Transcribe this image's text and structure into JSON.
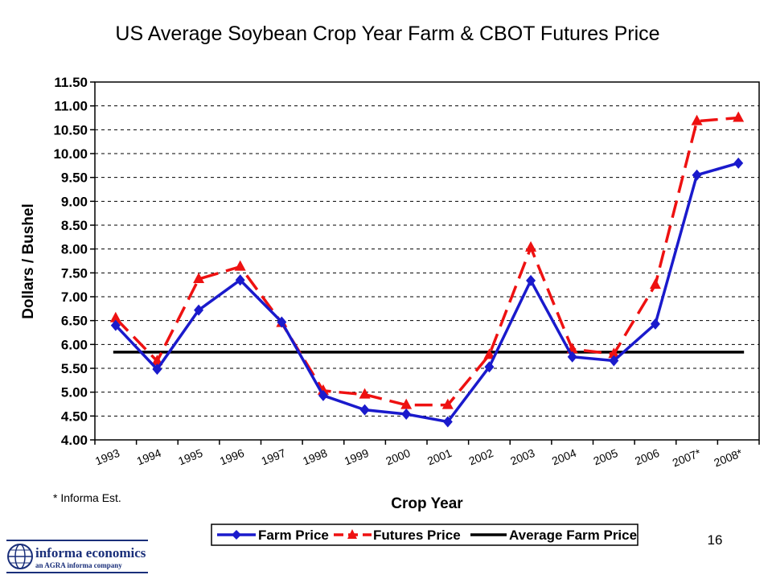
{
  "page_number": "16",
  "footnote": "* Informa Est.",
  "logo": {
    "name": "informa economics",
    "tagline": "an AGRA informa company"
  },
  "colors": {
    "farm": "#1a1acc",
    "futures": "#ee1111",
    "average": "#000000",
    "grid": "#000000"
  },
  "chart_data": {
    "type": "line",
    "title": "US Average Soybean Crop Year Farm & CBOT Futures Price",
    "xlabel": "Crop Year",
    "ylabel": "Dollars / Bushel",
    "ylim": [
      4.0,
      11.5
    ],
    "ytick_step": 0.5,
    "grid": "horizontal dashed",
    "legend_placement": "bottom",
    "categories": [
      "1993",
      "1994",
      "1995",
      "1996",
      "1997",
      "1998",
      "1999",
      "2000",
      "2001",
      "2002",
      "2003",
      "2004",
      "2005",
      "2006",
      "2007*",
      "2008*"
    ],
    "ytick_labels": [
      "4.00",
      "4.50",
      "5.00",
      "5.50",
      "6.00",
      "6.50",
      "7.00",
      "7.50",
      "8.00",
      "8.50",
      "9.00",
      "9.50",
      "10.00",
      "10.50",
      "11.00",
      "11.50"
    ],
    "series": [
      {
        "name": "Farm Price",
        "marker": "diamond",
        "line": "solid",
        "values": [
          6.4,
          5.48,
          6.72,
          7.35,
          6.47,
          4.93,
          4.63,
          4.54,
          4.38,
          5.53,
          7.34,
          5.74,
          5.66,
          6.43,
          9.55,
          9.8
        ]
      },
      {
        "name": "Futures Price",
        "marker": "triangle",
        "line": "dashed",
        "values": [
          6.55,
          5.65,
          7.37,
          7.63,
          6.45,
          5.03,
          4.95,
          4.73,
          4.73,
          5.78,
          8.03,
          5.9,
          5.8,
          7.25,
          10.68,
          10.75
        ]
      },
      {
        "name": "Average Farm Price",
        "marker": "none",
        "line": "solid",
        "value": 5.84
      }
    ]
  }
}
